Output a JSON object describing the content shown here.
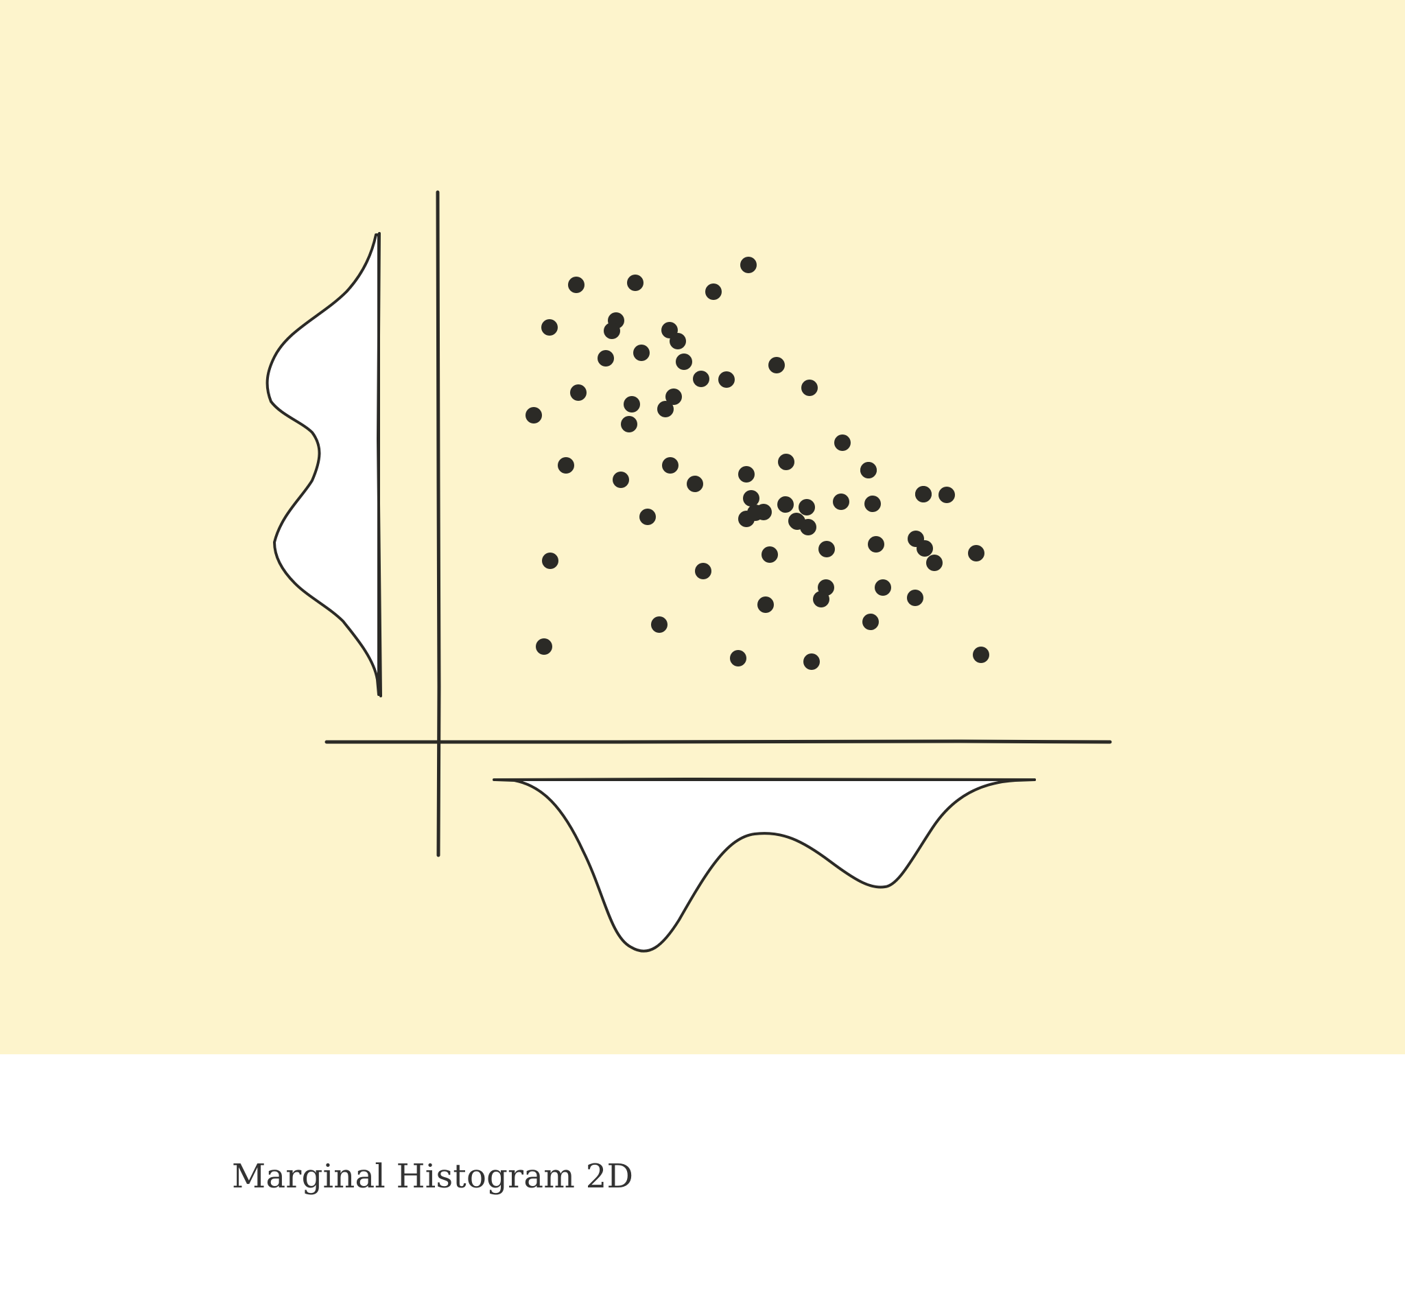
{
  "caption": "Marginal Histogram 2D",
  "colors": {
    "panel_background": "#fdf4cc",
    "page_background": "#ffffff",
    "ink": "#2b2a26",
    "distribution_fill": "#ffffff",
    "caption_text": "#333333"
  },
  "illustration": {
    "type": "scatter with marginal density curves",
    "point_count": 66,
    "left_marginal": "bimodal density",
    "bottom_marginal": "bimodal density"
  }
}
